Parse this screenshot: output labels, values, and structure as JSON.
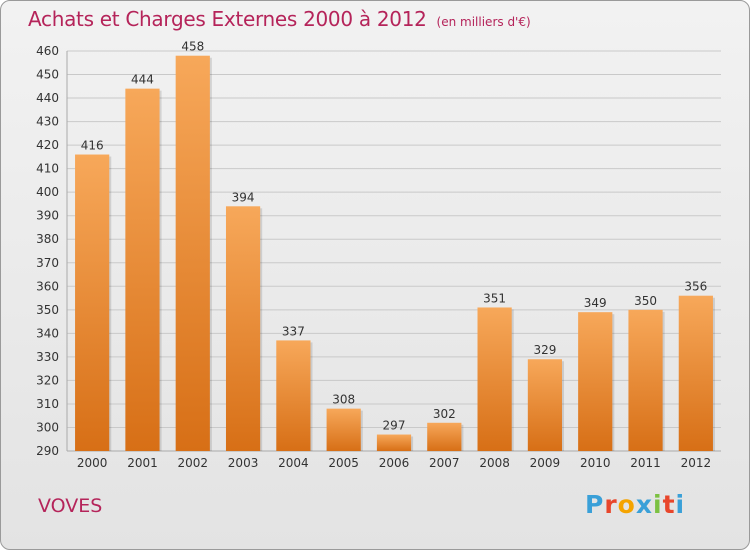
{
  "header": {
    "title": "Achats et Charges Externes 2000 à 2012",
    "subtitle": "(en milliers d'€)"
  },
  "footer": {
    "place": "VOVES",
    "logo_letters": [
      "P",
      "r",
      "o",
      "x",
      "i",
      "t",
      "i"
    ],
    "logo_colors": [
      "#3aa0d8",
      "#e8462b",
      "#f5a400",
      "#3aa0d8",
      "#7cc142",
      "#e8462b",
      "#3aa0d8"
    ]
  },
  "colors": {
    "bar_light": "#f7a85a",
    "bar_dark": "#d76f16",
    "grid": "#c9c9c9",
    "text": "#333333"
  },
  "chart_data": {
    "type": "bar",
    "categories": [
      "2000",
      "2001",
      "2002",
      "2003",
      "2004",
      "2005",
      "2006",
      "2007",
      "2008",
      "2009",
      "2010",
      "2011",
      "2012"
    ],
    "values": [
      416,
      444,
      458,
      394,
      337,
      308,
      297,
      302,
      351,
      329,
      349,
      350,
      356
    ],
    "ylim": [
      290,
      460
    ],
    "yticks": [
      290,
      300,
      310,
      320,
      330,
      340,
      350,
      360,
      370,
      380,
      390,
      400,
      410,
      420,
      430,
      440,
      450,
      460
    ],
    "grid": true,
    "data_labels": true
  }
}
